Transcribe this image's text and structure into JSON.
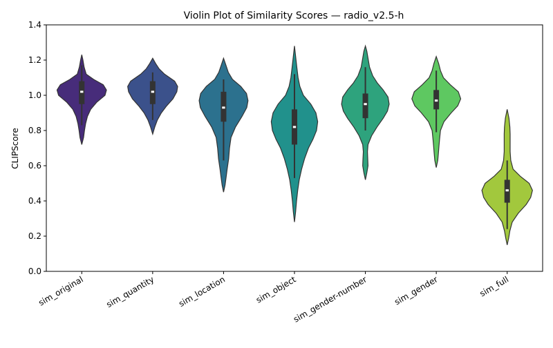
{
  "chart_data": {
    "type": "violin",
    "title": "Violin Plot of Similarity Scores — radio_v2.5-h",
    "xlabel": "",
    "ylabel": "CLIPScore",
    "ylim": [
      0.0,
      1.4
    ],
    "yticks": [
      "0.0",
      "0.2",
      "0.4",
      "0.6",
      "0.8",
      "1.0",
      "1.2",
      "1.4"
    ],
    "grid": false,
    "categories": [
      "sim_original",
      "sim_quantity",
      "sim_location",
      "sim_object",
      "sim_gender-number",
      "sim_gender",
      "sim_full"
    ],
    "series": [
      {
        "name": "sim_original",
        "color": "#472c7a",
        "min": 0.72,
        "max": 1.23,
        "q1": 0.95,
        "median": 1.02,
        "q3": 1.08,
        "whisker_low": 0.83,
        "whisker_high": 1.17,
        "profile": [
          [
            0.72,
            0.0
          ],
          [
            0.76,
            0.06
          ],
          [
            0.8,
            0.09
          ],
          [
            0.84,
            0.13
          ],
          [
            0.88,
            0.19
          ],
          [
            0.92,
            0.3
          ],
          [
            0.96,
            0.5
          ],
          [
            1.0,
            0.78
          ],
          [
            1.03,
            0.83
          ],
          [
            1.06,
            0.72
          ],
          [
            1.09,
            0.4
          ],
          [
            1.12,
            0.15
          ],
          [
            1.16,
            0.08
          ],
          [
            1.2,
            0.04
          ],
          [
            1.23,
            0.0
          ]
        ]
      },
      {
        "name": "sim_quantity",
        "color": "#3b518b",
        "min": 0.78,
        "max": 1.21,
        "q1": 0.95,
        "median": 1.02,
        "q3": 1.08,
        "whisker_low": 0.86,
        "whisker_high": 1.13,
        "profile": [
          [
            0.78,
            0.0
          ],
          [
            0.82,
            0.07
          ],
          [
            0.86,
            0.16
          ],
          [
            0.9,
            0.29
          ],
          [
            0.94,
            0.47
          ],
          [
            0.98,
            0.68
          ],
          [
            1.02,
            0.81
          ],
          [
            1.05,
            0.84
          ],
          [
            1.08,
            0.74
          ],
          [
            1.12,
            0.4
          ],
          [
            1.15,
            0.22
          ],
          [
            1.18,
            0.1
          ],
          [
            1.21,
            0.0
          ]
        ]
      },
      {
        "name": "sim_location",
        "color": "#2c718e",
        "min": 0.45,
        "max": 1.21,
        "q1": 0.85,
        "median": 0.93,
        "q3": 1.02,
        "whisker_low": 0.63,
        "whisker_high": 1.09,
        "profile": [
          [
            0.45,
            0.0
          ],
          [
            0.49,
            0.05
          ],
          [
            0.54,
            0.09
          ],
          [
            0.58,
            0.12
          ],
          [
            0.64,
            0.17
          ],
          [
            0.7,
            0.2
          ],
          [
            0.76,
            0.25
          ],
          [
            0.82,
            0.4
          ],
          [
            0.88,
            0.62
          ],
          [
            0.93,
            0.78
          ],
          [
            0.97,
            0.82
          ],
          [
            1.01,
            0.77
          ],
          [
            1.05,
            0.58
          ],
          [
            1.09,
            0.3
          ],
          [
            1.13,
            0.16
          ],
          [
            1.17,
            0.08
          ],
          [
            1.21,
            0.0
          ]
        ]
      },
      {
        "name": "sim_object",
        "color": "#21918c",
        "min": 0.28,
        "max": 1.28,
        "q1": 0.72,
        "median": 0.82,
        "q3": 0.92,
        "whisker_low": 0.53,
        "whisker_high": 1.12,
        "profile": [
          [
            0.28,
            0.0
          ],
          [
            0.34,
            0.04
          ],
          [
            0.4,
            0.07
          ],
          [
            0.46,
            0.11
          ],
          [
            0.52,
            0.16
          ],
          [
            0.58,
            0.24
          ],
          [
            0.64,
            0.34
          ],
          [
            0.7,
            0.47
          ],
          [
            0.75,
            0.62
          ],
          [
            0.8,
            0.74
          ],
          [
            0.85,
            0.78
          ],
          [
            0.9,
            0.72
          ],
          [
            0.95,
            0.55
          ],
          [
            1.0,
            0.3
          ],
          [
            1.05,
            0.18
          ],
          [
            1.1,
            0.12
          ],
          [
            1.16,
            0.08
          ],
          [
            1.22,
            0.04
          ],
          [
            1.28,
            0.0
          ]
        ]
      },
      {
        "name": "sim_gender-number",
        "color": "#2ea37d",
        "min": 0.52,
        "max": 1.28,
        "q1": 0.87,
        "median": 0.95,
        "q3": 1.01,
        "whisker_low": 0.8,
        "whisker_high": 1.16,
        "profile": [
          [
            0.52,
            0.0
          ],
          [
            0.56,
            0.05
          ],
          [
            0.6,
            0.09
          ],
          [
            0.64,
            0.08
          ],
          [
            0.68,
            0.07
          ],
          [
            0.72,
            0.09
          ],
          [
            0.77,
            0.21
          ],
          [
            0.82,
            0.39
          ],
          [
            0.87,
            0.6
          ],
          [
            0.91,
            0.74
          ],
          [
            0.95,
            0.8
          ],
          [
            0.99,
            0.76
          ],
          [
            1.03,
            0.6
          ],
          [
            1.07,
            0.4
          ],
          [
            1.11,
            0.25
          ],
          [
            1.16,
            0.14
          ],
          [
            1.21,
            0.09
          ],
          [
            1.25,
            0.05
          ],
          [
            1.28,
            0.0
          ]
        ]
      },
      {
        "name": "sim_gender",
        "color": "#5ec861",
        "min": 0.59,
        "max": 1.22,
        "q1": 0.92,
        "median": 0.97,
        "q3": 1.03,
        "whisker_low": 0.79,
        "whisker_high": 1.14,
        "profile": [
          [
            0.59,
            0.0
          ],
          [
            0.63,
            0.05
          ],
          [
            0.67,
            0.07
          ],
          [
            0.71,
            0.09
          ],
          [
            0.75,
            0.11
          ],
          [
            0.8,
            0.14
          ],
          [
            0.85,
            0.26
          ],
          [
            0.9,
            0.5
          ],
          [
            0.94,
            0.72
          ],
          [
            0.98,
            0.82
          ],
          [
            1.02,
            0.74
          ],
          [
            1.06,
            0.47
          ],
          [
            1.1,
            0.24
          ],
          [
            1.14,
            0.14
          ],
          [
            1.18,
            0.08
          ],
          [
            1.22,
            0.0
          ]
        ]
      },
      {
        "name": "sim_full",
        "color": "#a2c83d",
        "min": 0.15,
        "max": 0.92,
        "q1": 0.39,
        "median": 0.46,
        "q3": 0.52,
        "whisker_low": 0.24,
        "whisker_high": 0.63,
        "profile": [
          [
            0.15,
            0.0
          ],
          [
            0.19,
            0.05
          ],
          [
            0.23,
            0.09
          ],
          [
            0.28,
            0.17
          ],
          [
            0.33,
            0.37
          ],
          [
            0.38,
            0.64
          ],
          [
            0.42,
            0.79
          ],
          [
            0.46,
            0.85
          ],
          [
            0.5,
            0.74
          ],
          [
            0.54,
            0.44
          ],
          [
            0.58,
            0.2
          ],
          [
            0.63,
            0.12
          ],
          [
            0.68,
            0.1
          ],
          [
            0.73,
            0.1
          ],
          [
            0.78,
            0.1
          ],
          [
            0.82,
            0.09
          ],
          [
            0.87,
            0.06
          ],
          [
            0.92,
            0.0
          ]
        ]
      }
    ]
  }
}
